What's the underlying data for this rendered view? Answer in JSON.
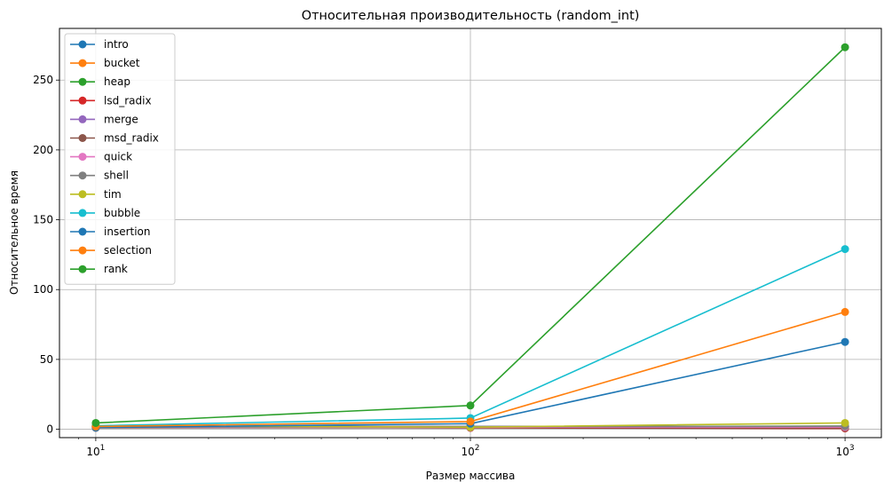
{
  "chart_data": {
    "type": "line",
    "title": "Относительная производительность (random_int)",
    "xlabel": "Размер массива",
    "ylabel": "Относительное время",
    "xscale": "log",
    "xlim": [
      8,
      1250
    ],
    "ylim": [
      -6,
      287
    ],
    "x": [
      10,
      100,
      1000
    ],
    "x_tick_labels": [
      {
        "base": "10",
        "exp": "1",
        "value": 10
      },
      {
        "base": "10",
        "exp": "2",
        "value": 100
      },
      {
        "base": "10",
        "exp": "3",
        "value": 1000
      }
    ],
    "y_ticks": [
      0,
      50,
      100,
      150,
      200,
      250
    ],
    "grid": true,
    "legend_position": "top-left",
    "series": [
      {
        "name": "intro",
        "color": "#1f77b4",
        "values": [
          1.5,
          1.6,
          1.8
        ]
      },
      {
        "name": "bucket",
        "color": "#ff7f0e",
        "values": [
          2.2,
          1.8,
          1.5
        ]
      },
      {
        "name": "heap",
        "color": "#2ca02c",
        "values": [
          2.0,
          2.0,
          2.2
        ]
      },
      {
        "name": "lsd_radix",
        "color": "#d62728",
        "values": [
          1.8,
          1.0,
          0.6
        ]
      },
      {
        "name": "merge",
        "color": "#9467bd",
        "values": [
          2.0,
          2.0,
          2.0
        ]
      },
      {
        "name": "msd_radix",
        "color": "#8c564b",
        "values": [
          1.0,
          1.2,
          1.0
        ]
      },
      {
        "name": "quick",
        "color": "#e377c2",
        "values": [
          1.4,
          1.5,
          1.6
        ]
      },
      {
        "name": "shell",
        "color": "#7f7f7f",
        "values": [
          1.6,
          1.8,
          2.2
        ]
      },
      {
        "name": "tim",
        "color": "#bcbd22",
        "values": [
          2.5,
          1.5,
          4.5
        ]
      },
      {
        "name": "bubble",
        "color": "#17becf",
        "values": [
          2.5,
          8.0,
          129.0
        ]
      },
      {
        "name": "insertion",
        "color": "#1f77b4",
        "values": [
          1.2,
          4.0,
          62.5
        ]
      },
      {
        "name": "selection",
        "color": "#ff7f0e",
        "values": [
          2.0,
          5.5,
          84.0
        ]
      },
      {
        "name": "rank",
        "color": "#2ca02c",
        "values": [
          4.5,
          17.0,
          273.5
        ]
      }
    ]
  }
}
